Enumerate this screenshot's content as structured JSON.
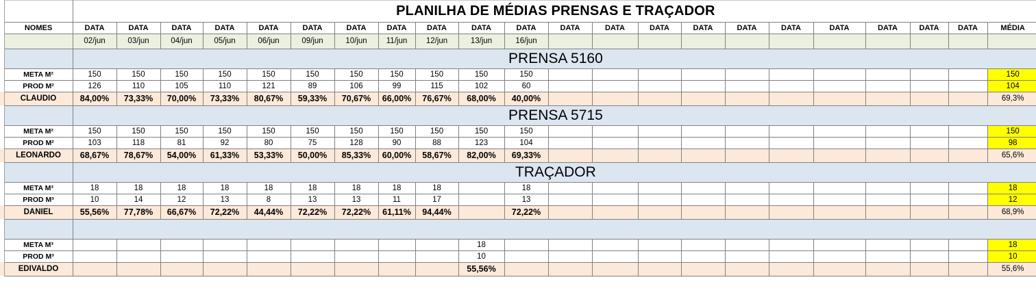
{
  "title": "PLANILHA DE MÉDIAS PRENSAS E TRAÇADOR",
  "header": {
    "nomes": "NOMES",
    "data_labels": [
      "DATA",
      "DATA",
      "DATA",
      "DATA",
      "DATA",
      "DATA",
      "DATA",
      "DATA",
      "DATA",
      "DATA",
      "DATA",
      "DATA",
      "DATA",
      "DATA",
      "DATA",
      "DATA",
      "DATA",
      "DATA",
      "DATA",
      "DATA",
      "DATA"
    ],
    "media": "MÉDIA"
  },
  "dates": [
    "02/jun",
    "03/jun",
    "04/jun",
    "05/jun",
    "06/jun",
    "09/jun",
    "10/jun",
    "11/jun",
    "12/jun",
    "13/jun",
    "16/jun",
    "",
    "",
    "",
    "",
    "",
    "",
    "",
    "",
    "",
    ""
  ],
  "sections": [
    {
      "title": "PRENSA 5160",
      "meta": {
        "label": "META M²",
        "values": [
          "150",
          "150",
          "150",
          "150",
          "150",
          "150",
          "150",
          "150",
          "150",
          "150",
          "150"
        ],
        "avg": "150"
      },
      "prod": {
        "label": "PROD M²",
        "values": [
          "126",
          "110",
          "105",
          "110",
          "121",
          "89",
          "106",
          "99",
          "115",
          "102",
          "60"
        ],
        "avg": "104"
      },
      "pct": {
        "label": "CLAUDIO",
        "values": [
          "84,00%",
          "73,33%",
          "70,00%",
          "73,33%",
          "80,67%",
          "59,33%",
          "70,67%",
          "66,00%",
          "76,67%",
          "68,00%",
          "40,00%"
        ],
        "avg": "69,3%"
      }
    },
    {
      "title": "PRENSA 5715",
      "meta": {
        "label": "META M²",
        "values": [
          "150",
          "150",
          "150",
          "150",
          "150",
          "150",
          "150",
          "150",
          "150",
          "150",
          "150"
        ],
        "avg": "150"
      },
      "prod": {
        "label": "PROD M²",
        "values": [
          "103",
          "118",
          "81",
          "92",
          "80",
          "75",
          "128",
          "90",
          "88",
          "123",
          "104"
        ],
        "avg": "98"
      },
      "pct": {
        "label": "LEONARDO",
        "values": [
          "68,67%",
          "78,67%",
          "54,00%",
          "61,33%",
          "53,33%",
          "50,00%",
          "85,33%",
          "60,00%",
          "58,67%",
          "82,00%",
          "69,33%"
        ],
        "avg": "65,6%"
      }
    },
    {
      "title": "TRAÇADOR",
      "meta": {
        "label": "META M³",
        "values": [
          "18",
          "18",
          "18",
          "18",
          "18",
          "18",
          "18",
          "18",
          "18",
          "",
          "18"
        ],
        "avg": "18"
      },
      "prod": {
        "label": "PROD M³",
        "values": [
          "10",
          "14",
          "12",
          "13",
          "8",
          "13",
          "13",
          "11",
          "17",
          "",
          "13"
        ],
        "avg": "12"
      },
      "pct": {
        "label": "DANIEL",
        "values": [
          "55,56%",
          "77,78%",
          "66,67%",
          "72,22%",
          "44,44%",
          "72,22%",
          "72,22%",
          "61,11%",
          "94,44%",
          "",
          "72,22%"
        ],
        "avg": "68,9%"
      }
    },
    {
      "title": "",
      "meta": {
        "label": "META M³",
        "values": [
          "",
          "",
          "",
          "",
          "",
          "",
          "",
          "",
          "",
          "18",
          ""
        ],
        "avg": "18"
      },
      "prod": {
        "label": "PROD M³",
        "values": [
          "",
          "",
          "",
          "",
          "",
          "",
          "",
          "",
          "",
          "10",
          ""
        ],
        "avg": "10"
      },
      "pct": {
        "label": "EDIVALDO",
        "values": [
          "",
          "",
          "",
          "",
          "",
          "",
          "",
          "",
          "",
          "55,56%",
          ""
        ],
        "avg": "55,6%"
      }
    }
  ]
}
